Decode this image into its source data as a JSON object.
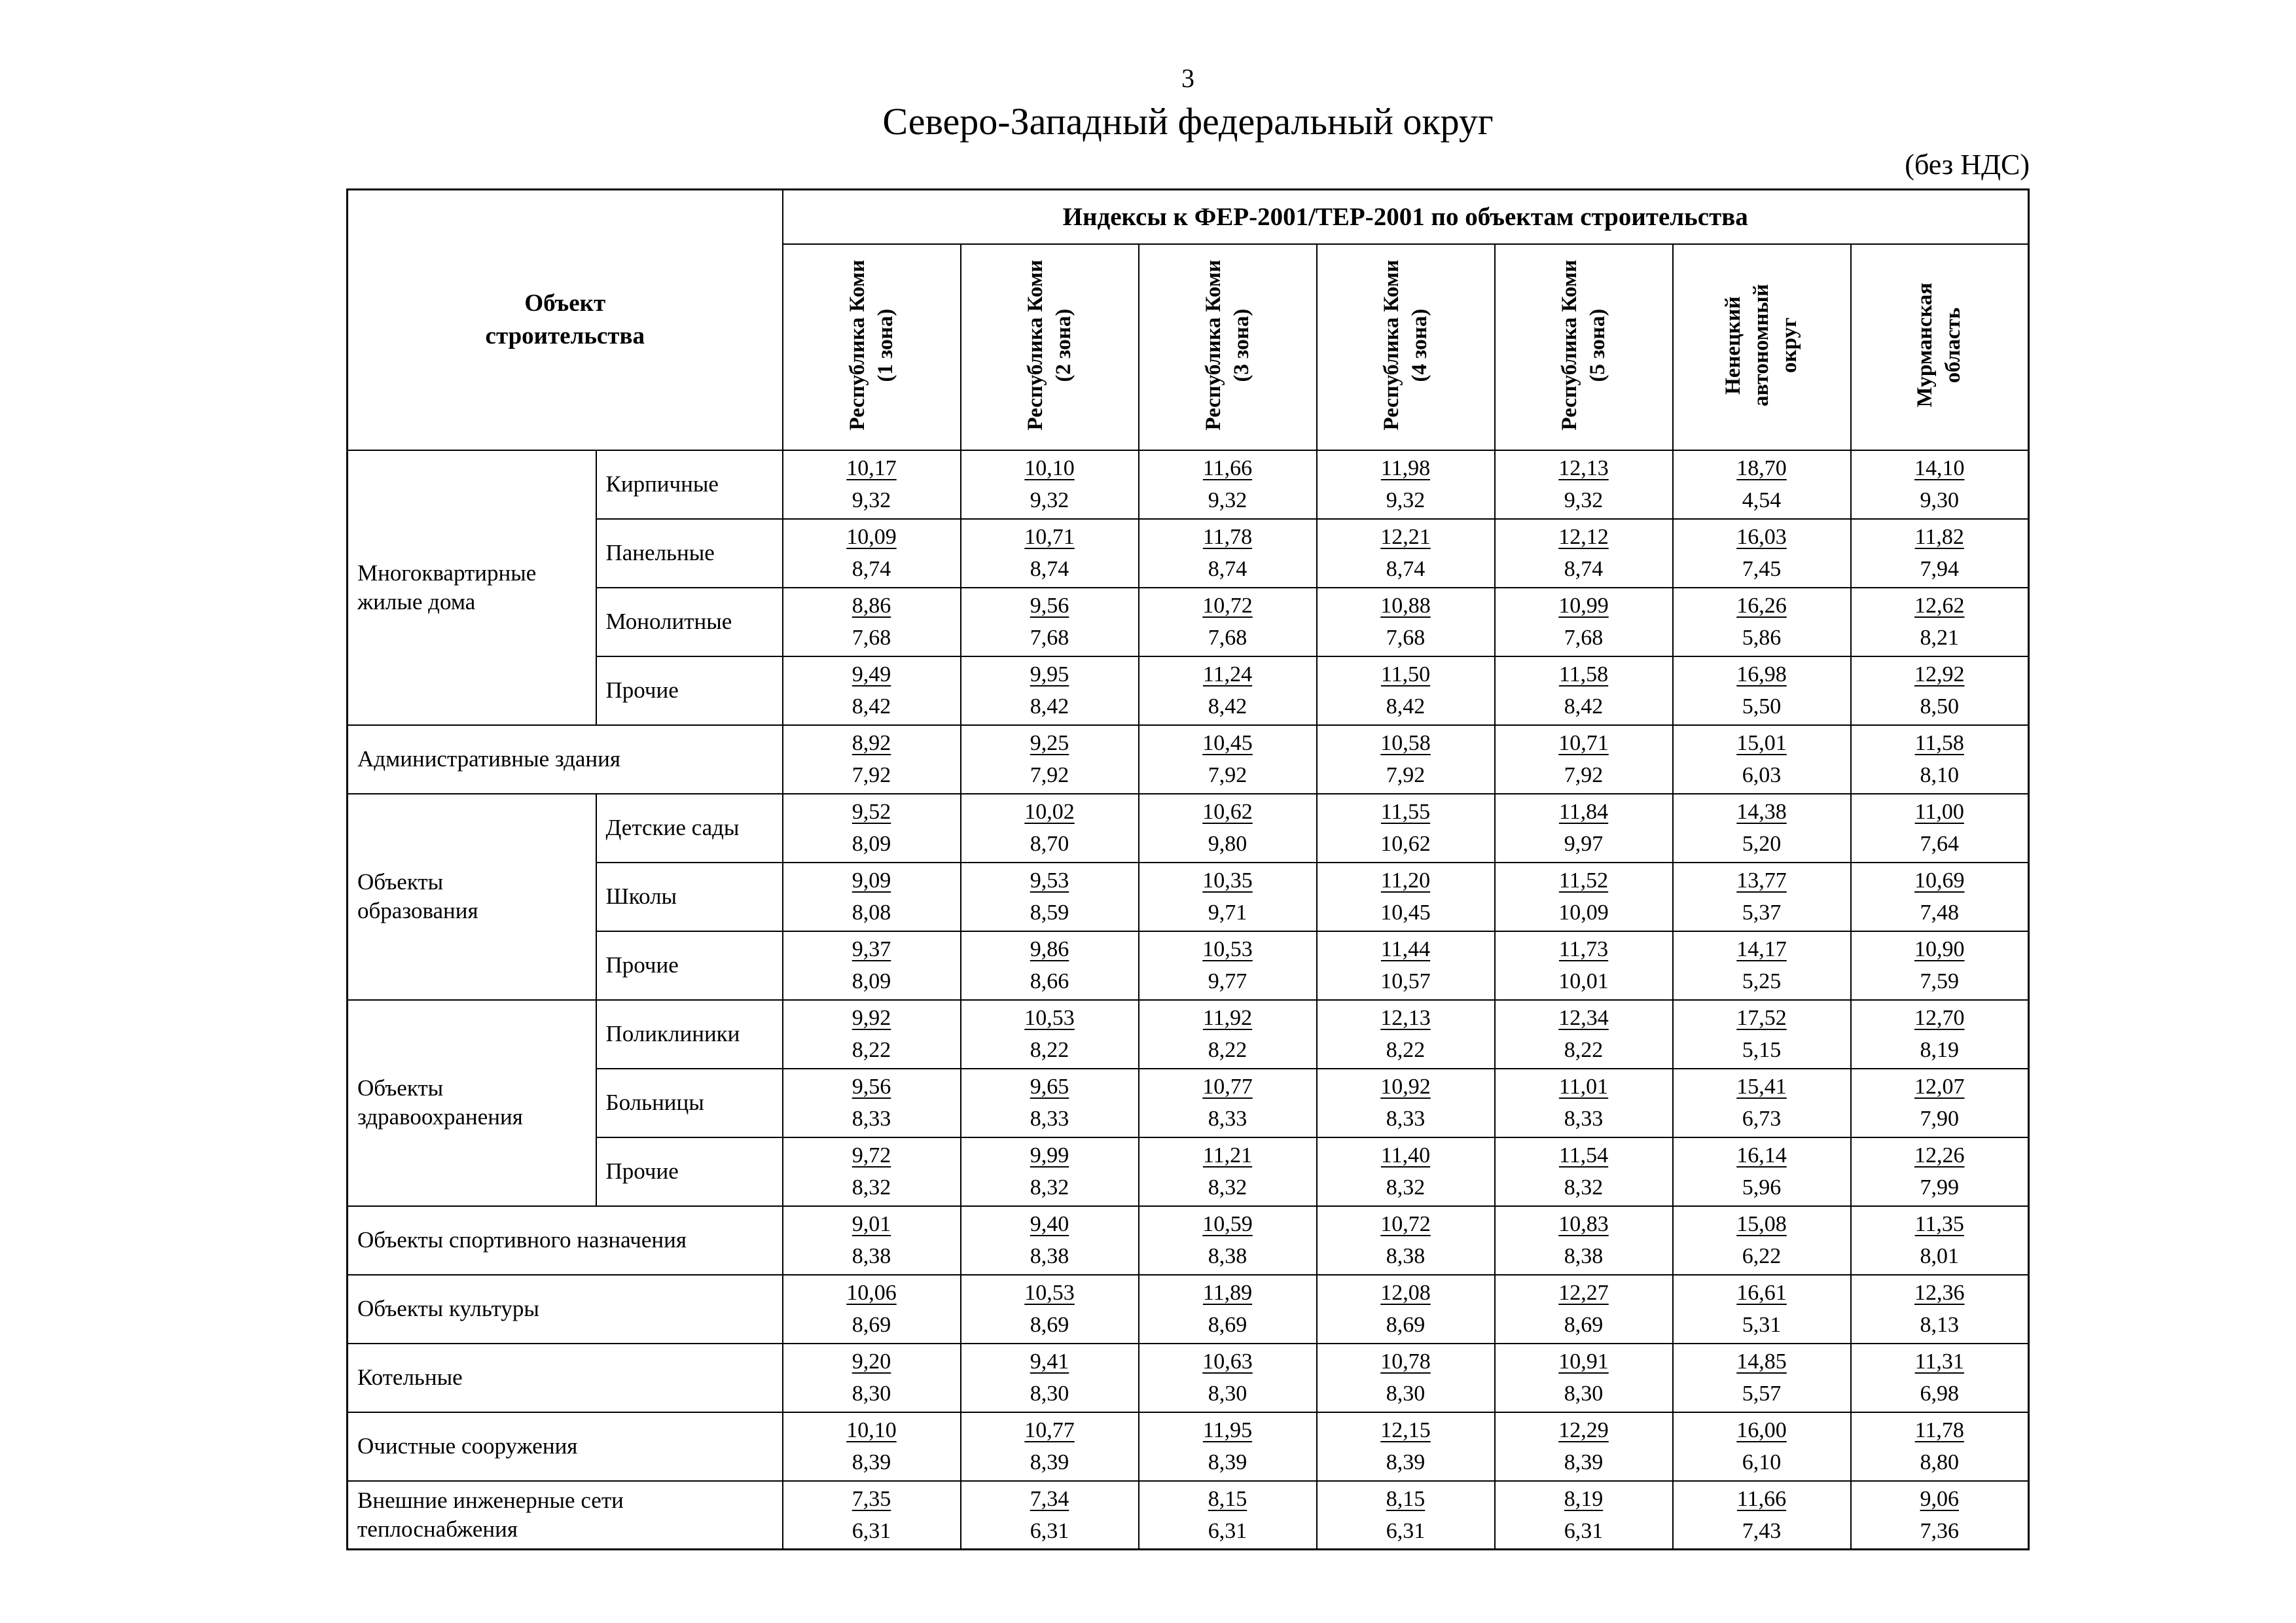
{
  "page": {
    "number": "3",
    "title": "Северо-Западный федеральный округ",
    "vat_note": "(без НДС)"
  },
  "table": {
    "corner_header": "Объект\nстроительства",
    "main_header": "Индексы к ФЕР-2001/ТЕР-2001 по объектам строительства",
    "columns": [
      "Республика Коми\n(1 зона)",
      "Республика Коми\n(2 зона)",
      "Республика Коми\n(3 зона)",
      "Республика Коми\n(4 зона)",
      "Республика Коми\n(5 зона)",
      "Ненецкий\nавтономный\nокруг",
      "Мурманская\nобласть"
    ],
    "rows": [
      {
        "group": "Многоквартирные жилые дома",
        "group_rowspan": 4,
        "sub": "Кирпичные",
        "cells": [
          [
            "10,17",
            "9,32"
          ],
          [
            "10,10",
            "9,32"
          ],
          [
            "11,66",
            "9,32"
          ],
          [
            "11,98",
            "9,32"
          ],
          [
            "12,13",
            "9,32"
          ],
          [
            "18,70",
            "4,54"
          ],
          [
            "14,10",
            "9,30"
          ]
        ]
      },
      {
        "sub": "Панельные",
        "cells": [
          [
            "10,09",
            "8,74"
          ],
          [
            "10,71",
            "8,74"
          ],
          [
            "11,78",
            "8,74"
          ],
          [
            "12,21",
            "8,74"
          ],
          [
            "12,12",
            "8,74"
          ],
          [
            "16,03",
            "7,45"
          ],
          [
            "11,82",
            "7,94"
          ]
        ]
      },
      {
        "sub": "Монолитные",
        "cells": [
          [
            "8,86",
            "7,68"
          ],
          [
            "9,56",
            "7,68"
          ],
          [
            "10,72",
            "7,68"
          ],
          [
            "10,88",
            "7,68"
          ],
          [
            "10,99",
            "7,68"
          ],
          [
            "16,26",
            "5,86"
          ],
          [
            "12,62",
            "8,21"
          ]
        ]
      },
      {
        "sub": "Прочие",
        "cells": [
          [
            "9,49",
            "8,42"
          ],
          [
            "9,95",
            "8,42"
          ],
          [
            "11,24",
            "8,42"
          ],
          [
            "11,50",
            "8,42"
          ],
          [
            "11,58",
            "8,42"
          ],
          [
            "16,98",
            "5,50"
          ],
          [
            "12,92",
            "8,50"
          ]
        ]
      },
      {
        "full": "Административные здания",
        "cells": [
          [
            "8,92",
            "7,92"
          ],
          [
            "9,25",
            "7,92"
          ],
          [
            "10,45",
            "7,92"
          ],
          [
            "10,58",
            "7,92"
          ],
          [
            "10,71",
            "7,92"
          ],
          [
            "15,01",
            "6,03"
          ],
          [
            "11,58",
            "8,10"
          ]
        ]
      },
      {
        "group": "Объекты\nобразования",
        "group_rowspan": 3,
        "sub": "Детские сады",
        "cells": [
          [
            "9,52",
            "8,09"
          ],
          [
            "10,02",
            "8,70"
          ],
          [
            "10,62",
            "9,80"
          ],
          [
            "11,55",
            "10,62"
          ],
          [
            "11,84",
            "9,97"
          ],
          [
            "14,38",
            "5,20"
          ],
          [
            "11,00",
            "7,64"
          ]
        ]
      },
      {
        "sub": "Школы",
        "cells": [
          [
            "9,09",
            "8,08"
          ],
          [
            "9,53",
            "8,59"
          ],
          [
            "10,35",
            "9,71"
          ],
          [
            "11,20",
            "10,45"
          ],
          [
            "11,52",
            "10,09"
          ],
          [
            "13,77",
            "5,37"
          ],
          [
            "10,69",
            "7,48"
          ]
        ]
      },
      {
        "sub": "Прочие",
        "cells": [
          [
            "9,37",
            "8,09"
          ],
          [
            "9,86",
            "8,66"
          ],
          [
            "10,53",
            "9,77"
          ],
          [
            "11,44",
            "10,57"
          ],
          [
            "11,73",
            "10,01"
          ],
          [
            "14,17",
            "5,25"
          ],
          [
            "10,90",
            "7,59"
          ]
        ]
      },
      {
        "group": "Объекты\nздравоохранения",
        "group_rowspan": 3,
        "sub": "Поликлиники",
        "cells": [
          [
            "9,92",
            "8,22"
          ],
          [
            "10,53",
            "8,22"
          ],
          [
            "11,92",
            "8,22"
          ],
          [
            "12,13",
            "8,22"
          ],
          [
            "12,34",
            "8,22"
          ],
          [
            "17,52",
            "5,15"
          ],
          [
            "12,70",
            "8,19"
          ]
        ]
      },
      {
        "sub": "Больницы",
        "cells": [
          [
            "9,56",
            "8,33"
          ],
          [
            "9,65",
            "8,33"
          ],
          [
            "10,77",
            "8,33"
          ],
          [
            "10,92",
            "8,33"
          ],
          [
            "11,01",
            "8,33"
          ],
          [
            "15,41",
            "6,73"
          ],
          [
            "12,07",
            "7,90"
          ]
        ]
      },
      {
        "sub": "Прочие",
        "cells": [
          [
            "9,72",
            "8,32"
          ],
          [
            "9,99",
            "8,32"
          ],
          [
            "11,21",
            "8,32"
          ],
          [
            "11,40",
            "8,32"
          ],
          [
            "11,54",
            "8,32"
          ],
          [
            "16,14",
            "5,96"
          ],
          [
            "12,26",
            "7,99"
          ]
        ]
      },
      {
        "full": "Объекты спортивного назначения",
        "cells": [
          [
            "9,01",
            "8,38"
          ],
          [
            "9,40",
            "8,38"
          ],
          [
            "10,59",
            "8,38"
          ],
          [
            "10,72",
            "8,38"
          ],
          [
            "10,83",
            "8,38"
          ],
          [
            "15,08",
            "6,22"
          ],
          [
            "11,35",
            "8,01"
          ]
        ]
      },
      {
        "full": "Объекты культуры",
        "cells": [
          [
            "10,06",
            "8,69"
          ],
          [
            "10,53",
            "8,69"
          ],
          [
            "11,89",
            "8,69"
          ],
          [
            "12,08",
            "8,69"
          ],
          [
            "12,27",
            "8,69"
          ],
          [
            "16,61",
            "5,31"
          ],
          [
            "12,36",
            "8,13"
          ]
        ]
      },
      {
        "full": "Котельные",
        "cells": [
          [
            "9,20",
            "8,30"
          ],
          [
            "9,41",
            "8,30"
          ],
          [
            "10,63",
            "8,30"
          ],
          [
            "10,78",
            "8,30"
          ],
          [
            "10,91",
            "8,30"
          ],
          [
            "14,85",
            "5,57"
          ],
          [
            "11,31",
            "6,98"
          ]
        ]
      },
      {
        "full": "Очистные сооружения",
        "cells": [
          [
            "10,10",
            "8,39"
          ],
          [
            "10,77",
            "8,39"
          ],
          [
            "11,95",
            "8,39"
          ],
          [
            "12,15",
            "8,39"
          ],
          [
            "12,29",
            "8,39"
          ],
          [
            "16,00",
            "6,10"
          ],
          [
            "11,78",
            "8,80"
          ]
        ]
      },
      {
        "full": "Внешние инженерные сети\nтеплоснабжения",
        "cells": [
          [
            "7,35",
            "6,31"
          ],
          [
            "7,34",
            "6,31"
          ],
          [
            "8,15",
            "6,31"
          ],
          [
            "8,15",
            "6,31"
          ],
          [
            "8,19",
            "6,31"
          ],
          [
            "11,66",
            "7,43"
          ],
          [
            "9,06",
            "7,36"
          ]
        ]
      }
    ]
  }
}
